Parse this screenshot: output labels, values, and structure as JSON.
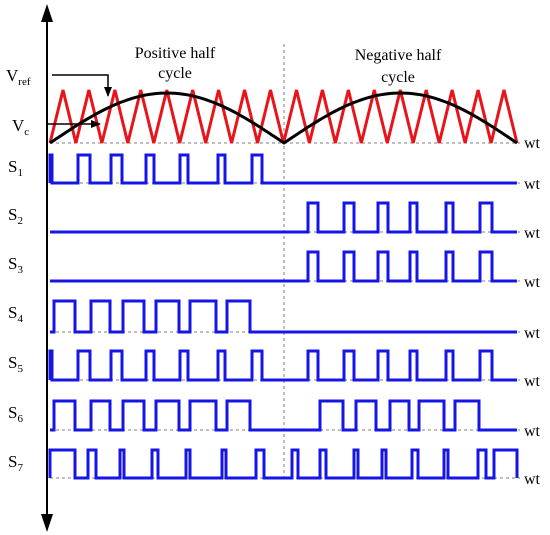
{
  "labels": {
    "positive_half": "Positive half",
    "positive_cycle": "cycle",
    "negative_half": "Negative half",
    "negative_cycle": "cycle",
    "vref_main": "V",
    "vref_sub": "ref",
    "vc_main": "V",
    "vc_sub": "c",
    "axis": "wt"
  },
  "switches": [
    {
      "main": "S",
      "sub": "1"
    },
    {
      "main": "S",
      "sub": "2"
    },
    {
      "main": "S",
      "sub": "3"
    },
    {
      "main": "S",
      "sub": "4"
    },
    {
      "main": "S",
      "sub": "5"
    },
    {
      "main": "S",
      "sub": "6"
    },
    {
      "main": "S",
      "sub": "7"
    }
  ],
  "colors": {
    "reference": "#000000",
    "carrier": "#e8141a",
    "pulse": "#1515e6",
    "axis": "#000000",
    "grid": "#7f7f7f"
  }
}
